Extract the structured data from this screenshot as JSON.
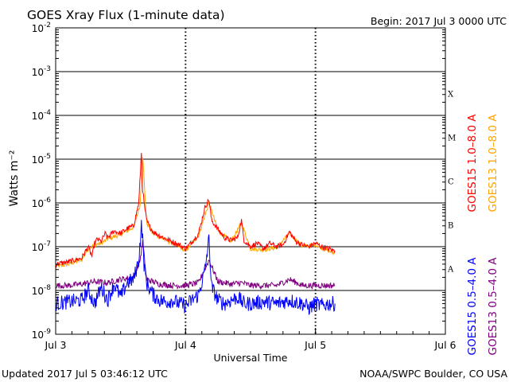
{
  "header": {
    "title": "GOES Xray Flux (1-minute data)",
    "begin": "Begin:  2017 Jul 3 0000 UTC"
  },
  "footer": {
    "updated": "Updated 2017 Jul  5 03:46:12 UTC",
    "credit": "NOAA/SWPC Boulder, CO USA"
  },
  "colors": {
    "goes15_long": "#ff0000",
    "goes13_long": "#ffa500",
    "goes15_short": "#0000ff",
    "goes13_short": "#800080",
    "grid": "#000000"
  },
  "chart_data": {
    "type": "line",
    "title": "GOES Xray Flux (1-minute data)",
    "xlabel": "Universal Time",
    "ylabel": "Watts m⁻²",
    "yscale": "log",
    "ylim": [
      1e-09,
      0.01
    ],
    "y_ticks": [
      {
        "label": "10",
        "exp": "-9",
        "value": 1e-09
      },
      {
        "label": "10",
        "exp": "-8",
        "value": 1e-08
      },
      {
        "label": "10",
        "exp": "-7",
        "value": 1e-07
      },
      {
        "label": "10",
        "exp": "-6",
        "value": 1e-06
      },
      {
        "label": "10",
        "exp": "-5",
        "value": 1e-05
      },
      {
        "label": "10",
        "exp": "-4",
        "value": 0.0001
      },
      {
        "label": "10",
        "exp": "-3",
        "value": 0.001
      },
      {
        "label": "10",
        "exp": "-2",
        "value": 0.01
      }
    ],
    "x_ticks": [
      {
        "label": "Jul 3",
        "day": 0
      },
      {
        "label": "Jul 4",
        "day": 1
      },
      {
        "label": "Jul 5",
        "day": 2
      },
      {
        "label": "Jul 6",
        "day": 3
      }
    ],
    "xlim_days": [
      0,
      3
    ],
    "flare_classes": [
      {
        "label": "A",
        "value": 1e-08
      },
      {
        "label": "B",
        "value": 1e-07
      },
      {
        "label": "C",
        "value": 1e-06
      },
      {
        "label": "M",
        "value": 1e-05
      },
      {
        "label": "X",
        "value": 0.0001
      }
    ],
    "grid": "horizontal at each decade; dotted verticals at day boundaries",
    "legend": {
      "placement": "right, vertical",
      "items": [
        {
          "text": "GOES15 1.0–8.0 A",
          "color": "#ff0000"
        },
        {
          "text": "GOES13 1.0–8.0 A",
          "color": "#ffa500"
        },
        {
          "text": "GOES15 0.5–4.0 A",
          "color": "#0000ff"
        },
        {
          "text": "GOES13 0.5–4.0 A",
          "color": "#800080"
        }
      ]
    },
    "series": [
      {
        "name": "GOES15 1.0–8.0 A",
        "color": "#ff0000",
        "x": [
          0,
          0.1,
          0.2,
          0.25,
          0.28,
          0.3,
          0.32,
          0.35,
          0.38,
          0.4,
          0.45,
          0.5,
          0.55,
          0.6,
          0.64,
          0.66,
          0.67,
          0.68,
          0.7,
          0.72,
          0.75,
          0.8,
          0.85,
          0.9,
          0.95,
          1.0,
          1.05,
          1.1,
          1.15,
          1.18,
          1.2,
          1.25,
          1.3,
          1.35,
          1.4,
          1.43,
          1.45,
          1.5,
          1.55,
          1.6,
          1.65,
          1.7,
          1.75,
          1.8,
          1.85,
          1.9,
          1.95,
          2.0,
          2.05,
          2.1,
          2.15
        ],
        "y": [
          4e-08,
          4.5e-08,
          5.5e-08,
          1e-07,
          6e-08,
          1.2e-07,
          1.5e-07,
          1.3e-07,
          2e-07,
          1.6e-07,
          2.3e-07,
          2e-07,
          2.6e-07,
          3e-07,
          1e-06,
          1.4e-05,
          2e-06,
          1e-06,
          4e-07,
          3e-07,
          2.2e-07,
          1.8e-07,
          1.5e-07,
          1.3e-07,
          1.1e-07,
          9e-08,
          1.3e-07,
          2e-07,
          8e-07,
          1.2e-06,
          4e-07,
          2.5e-07,
          1.6e-07,
          1.4e-07,
          1.6e-07,
          4e-07,
          1.4e-07,
          1e-07,
          1.2e-07,
          9e-08,
          1.2e-07,
          1e-07,
          1.1e-07,
          2.2e-07,
          1.3e-07,
          1.1e-07,
          1e-07,
          1.2e-07,
          1e-07,
          9e-08,
          8e-08
        ]
      },
      {
        "name": "GOES13 1.0–8.0 A",
        "color": "#ffa500",
        "x": [
          0,
          0.1,
          0.2,
          0.25,
          0.3,
          0.35,
          0.4,
          0.5,
          0.6,
          0.65,
          0.67,
          0.7,
          0.75,
          0.85,
          0.95,
          1.0,
          1.1,
          1.18,
          1.25,
          1.35,
          1.43,
          1.5,
          1.6,
          1.7,
          1.8,
          1.9,
          2.0,
          2.1,
          2.15
        ],
        "y": [
          3.5e-08,
          4e-08,
          5e-08,
          9e-08,
          1.1e-07,
          1.2e-07,
          1.5e-07,
          1.9e-07,
          2.8e-07,
          9e-07,
          1.2e-05,
          3.5e-07,
          2e-07,
          1.4e-07,
          1e-07,
          8e-08,
          1.8e-07,
          1e-06,
          2.3e-07,
          1.3e-07,
          3.5e-07,
          9e-08,
          8.5e-08,
          9.5e-08,
          2e-07,
          1e-07,
          1.1e-07,
          8e-08,
          7e-08
        ]
      },
      {
        "name": "GOES15 0.5–4.0 A",
        "color": "#0000ff",
        "x": [
          0,
          0.1,
          0.2,
          0.25,
          0.3,
          0.35,
          0.4,
          0.45,
          0.5,
          0.55,
          0.6,
          0.64,
          0.66,
          0.67,
          0.68,
          0.7,
          0.75,
          0.8,
          0.85,
          0.9,
          0.95,
          1.0,
          1.05,
          1.1,
          1.15,
          1.18,
          1.2,
          1.25,
          1.3,
          1.35,
          1.4,
          1.45,
          1.5,
          1.6,
          1.7,
          1.8,
          1.9,
          1.95,
          2.0,
          2.05,
          2.1,
          2.15
        ],
        "y": [
          5e-09,
          5.5e-09,
          6e-09,
          1e-08,
          5e-09,
          1.2e-08,
          6e-09,
          1.4e-08,
          7e-09,
          1.5e-08,
          1.8e-08,
          5e-08,
          3e-07,
          1.5e-07,
          4e-08,
          1.5e-08,
          8e-09,
          6e-09,
          5.5e-09,
          6e-09,
          5e-09,
          4.5e-09,
          6e-09,
          8e-09,
          3e-08,
          1.5e-07,
          1.2e-08,
          6e-09,
          5e-09,
          6e-09,
          7e-09,
          5e-09,
          5e-09,
          5.5e-09,
          5e-09,
          6e-09,
          5e-09,
          4e-09,
          5e-09,
          4.5e-09,
          5e-09,
          5e-09
        ]
      },
      {
        "name": "GOES13 0.5–4.0 A",
        "color": "#800080",
        "x": [
          0,
          0.1,
          0.2,
          0.3,
          0.4,
          0.5,
          0.6,
          0.65,
          0.67,
          0.7,
          0.8,
          0.9,
          1.0,
          1.1,
          1.18,
          1.25,
          1.35,
          1.43,
          1.5,
          1.6,
          1.7,
          1.8,
          1.9,
          2.0,
          2.1,
          2.15
        ],
        "y": [
          1.3e-08,
          1.3e-08,
          1.4e-08,
          1.6e-08,
          1.5e-08,
          1.8e-08,
          2e-08,
          5e-08,
          1.3e-07,
          1.8e-08,
          1.4e-08,
          1.3e-08,
          1.3e-08,
          1.5e-08,
          5e-08,
          1.6e-08,
          1.4e-08,
          1.5e-08,
          1.3e-08,
          1.3e-08,
          1.3e-08,
          1.8e-08,
          1.3e-08,
          1.3e-08,
          1.3e-08,
          1.3e-08
        ]
      }
    ]
  }
}
